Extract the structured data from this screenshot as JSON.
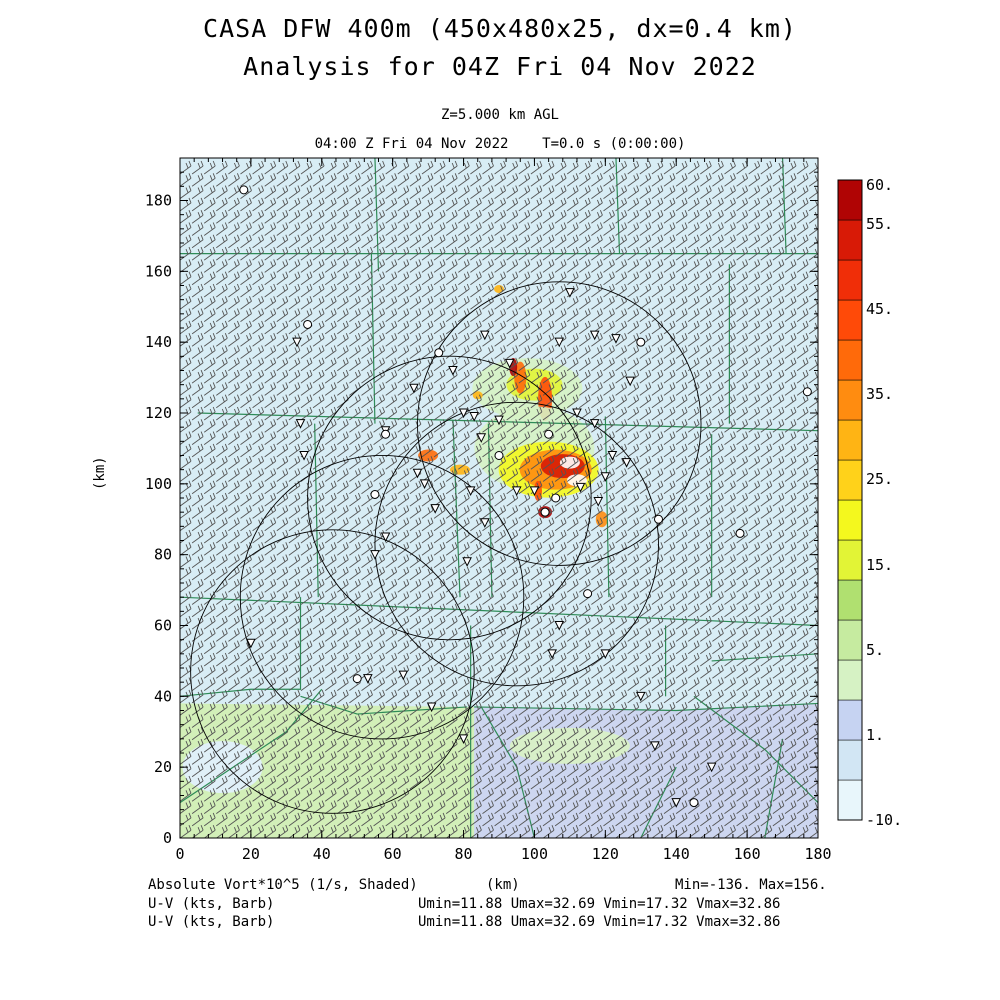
{
  "header": {
    "title_line1": "CASA DFW 400m (450x480x25, dx=0.4 km)",
    "title_line2": "Analysis for 04Z Fri 04 Nov 2022",
    "level": "Z=5.000 km AGL",
    "time": "04:00 Z Fri 04 Nov 2022    T=0.0 s (0:00:00)"
  },
  "axes": {
    "x_unit": "(km)",
    "y_unit": "(km)",
    "x_range": [
      0,
      180
    ],
    "y_range": [
      0,
      192
    ],
    "x_ticks": [
      0,
      20,
      40,
      60,
      80,
      100,
      120,
      140,
      160,
      180
    ],
    "y_ticks": [
      0,
      20,
      40,
      60,
      80,
      100,
      120,
      140,
      160,
      180
    ]
  },
  "colorbar": {
    "labels": [
      "60.",
      "55.",
      "45.",
      "35.",
      "25.",
      "15.",
      "5.",
      "1.",
      "-10."
    ],
    "colors": [
      "#e8f6fb",
      "#d2e6f4",
      "#c6d3f2",
      "#d6f2c4",
      "#c6eba0",
      "#b0e070",
      "#e2f436",
      "#f4f81e",
      "#ffd21a",
      "#ffb414",
      "#ff8c10",
      "#ff6a0a",
      "#ff4a08",
      "#f02e08",
      "#d81a06",
      "#b00404"
    ]
  },
  "footer": {
    "field_label": "Absolute Vort*10^5 (1/s, Shaded)",
    "x_unit": "(km)",
    "minmax": "Min=-136. Max=156.",
    "uv_label_1": "U-V (kts, Barb)",
    "uv_label_2": "U-V (kts, Barb)",
    "uv_stats_1": "Umin=11.88 Umax=32.69 Vmin=17.32 Vmax=32.86",
    "uv_stats_2": "Umin=11.88 Umax=32.69 Vmin=17.32 Vmax=32.86"
  },
  "map": {
    "background_color": "#d8edf5",
    "county_line_color": "#2e8b57",
    "radar_ring_color": "#000000",
    "barb_color": "#555555",
    "marker_icons": [
      "down-triangle-marker",
      "circle-marker"
    ]
  }
}
